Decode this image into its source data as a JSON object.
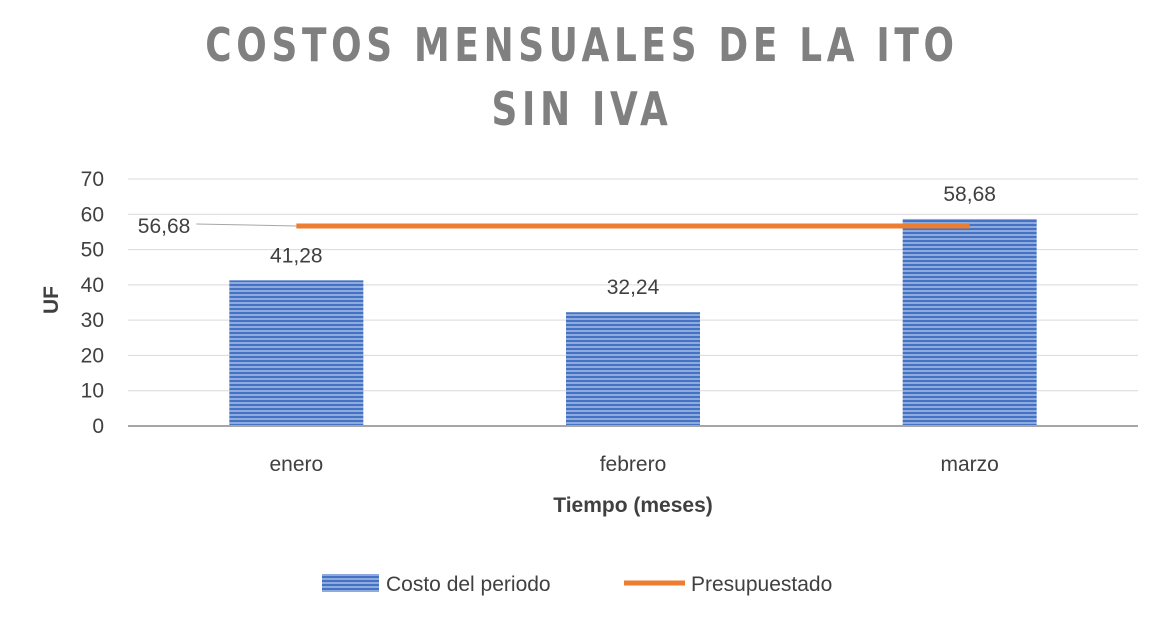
{
  "chart_data": {
    "type": "bar",
    "title": [
      "COSTOS MENSUALES DE LA ITO",
      "SIN IVA"
    ],
    "xlabel": "Tiempo (meses)",
    "ylabel": "UF",
    "ylim": [
      0,
      70
    ],
    "yticks": [
      0,
      10,
      20,
      30,
      40,
      50,
      60,
      70
    ],
    "categories": [
      "enero",
      "febrero",
      "marzo"
    ],
    "grid": true,
    "legend_position": "bottom",
    "series": [
      {
        "name": "Costo del periodo",
        "kind": "bar",
        "values": [
          41.28,
          32.24,
          58.68
        ],
        "labels": [
          "41,28",
          "32,24",
          "58,68"
        ],
        "color": "#4472C4"
      },
      {
        "name": "Presupuestado",
        "kind": "line",
        "values": [
          56.68,
          56.68,
          56.68
        ],
        "label": "56,68",
        "color": "#ED7D31"
      }
    ]
  }
}
